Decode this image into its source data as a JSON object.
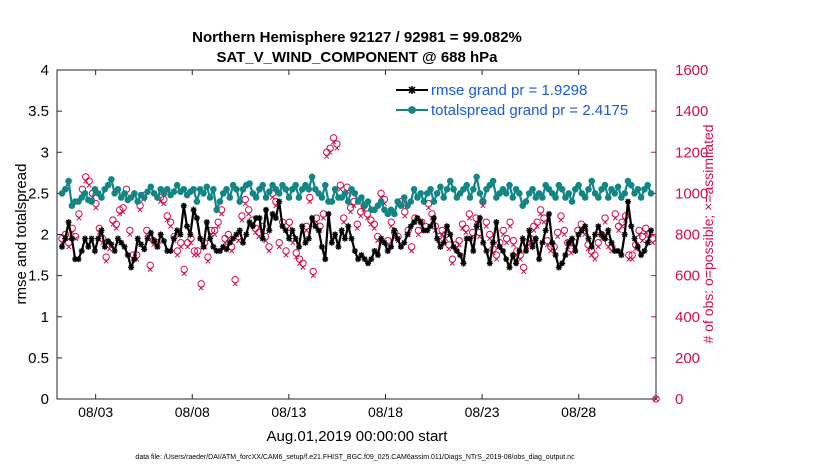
{
  "chart_data": {
    "type": "line",
    "title": "Northern Hemisphere 92127 / 92981 = 99.082%",
    "subtitle": "SAT_V_WIND_COMPONENT @ 688 hPa",
    "xlabel": "Aug.01,2019 00:00:00 start",
    "ylabel_left": "rmse and totalspread",
    "ylabel_right": "# of obs: o=possible; ×=assimilated",
    "ylim_left": [
      0,
      4
    ],
    "ylim_right": [
      0,
      1600
    ],
    "yticks_left": [
      "0",
      "0.5",
      "1",
      "1.5",
      "2",
      "2.5",
      "3",
      "3.5",
      "4"
    ],
    "yticks_right": [
      "0",
      "200",
      "400",
      "600",
      "800",
      "1000",
      "1200",
      "1400",
      "1600"
    ],
    "x_tick_labels": [
      "08/03",
      "08/08",
      "08/13",
      "08/18",
      "08/23",
      "08/28"
    ],
    "x_tick_days": [
      3,
      8,
      13,
      18,
      23,
      28
    ],
    "x_range_days": [
      1,
      32
    ],
    "footnote": "data file: /Users/raeder/DAI/ATM_forcXX/CAM6_setup/f.e21.FHIST_BGC.f09_025.CAM6assim.011/Diags_NTrS_2019-08/obs_diag_output.nc",
    "colors": {
      "rmse": "#000000",
      "spread": "#138585",
      "obs": "#d0104c",
      "legend_text": "#1a5ad8"
    },
    "series": [
      {
        "name": "rmse",
        "legend": "rmse grand pr = 1.9298",
        "values": [
          1.85,
          1.95,
          2.15,
          1.95,
          1.7,
          1.7,
          1.8,
          1.95,
          1.85,
          1.95,
          1.8,
          1.95,
          2.05,
          1.85,
          1.92,
          1.88,
          1.8,
          1.95,
          1.9,
          1.85,
          1.75,
          1.6,
          1.7,
          1.95,
          1.88,
          1.82,
          1.95,
          2.02,
          1.92,
          1.85,
          2.0,
          1.92,
          1.8,
          1.8,
          1.95,
          2.05,
          2.0,
          2.35,
          2.1,
          2.0,
          2.3,
          2.2,
          1.95,
          1.85,
          2.15,
          1.95,
          1.85,
          1.8,
          1.8,
          1.85,
          1.82,
          1.9,
          1.95,
          2.0,
          2.05,
          1.9,
          2.0,
          2.15,
          2.1,
          2.2,
          2.2,
          1.95,
          2.3,
          2.05,
          2.25,
          2.2,
          2.4,
          2.1,
          2.05,
          1.95,
          2.05,
          1.95,
          1.85,
          2.1,
          1.9,
          1.95,
          2.2,
          2.1,
          2.05,
          1.85,
          1.7,
          2.25,
          1.9,
          2.0,
          1.85,
          2.05,
          1.95,
          2.1,
          1.95,
          1.8,
          1.7,
          1.75,
          1.7,
          1.65,
          1.7,
          1.8,
          1.75,
          1.95,
          1.9,
          1.8,
          1.85,
          2.05,
          1.95,
          1.85,
          1.9,
          2.0,
          2.1,
          2.15,
          2.2,
          2.15,
          2.05,
          2.05,
          2.1,
          2.2,
          1.95,
          1.85,
          1.9,
          2.1,
          2.0,
          1.85,
          1.8,
          1.75,
          1.65,
          1.95,
          1.95,
          1.8,
          2.1,
          2.2,
          1.9,
          1.8,
          1.65,
          1.9,
          2.15,
          1.85,
          1.8,
          1.7,
          1.6,
          1.75,
          1.65,
          1.8,
          1.95,
          1.8,
          2.05,
          1.85,
          1.95,
          1.7,
          1.9,
          2.05,
          2.25,
          1.9,
          1.75,
          1.6,
          1.65,
          1.75,
          1.9,
          1.95,
          1.8,
          2.0,
          2.05,
          2.1,
          1.95,
          1.85,
          2.0,
          2.1,
          2.0,
          1.95,
          2.05,
          1.9,
          1.8,
          1.8,
          1.75,
          2.0,
          2.4,
          2.1,
          1.95,
          1.85,
          1.75,
          1.8,
          1.9,
          2.05
        ]
      },
      {
        "name": "totalspread",
        "legend": "totalspread grand pr = 2.4175",
        "values": [
          2.5,
          2.55,
          2.65,
          2.35,
          2.4,
          2.4,
          2.45,
          2.5,
          2.42,
          2.4,
          2.55,
          2.5,
          2.45,
          2.55,
          2.6,
          2.67,
          2.5,
          2.55,
          2.45,
          2.5,
          2.42,
          2.45,
          2.5,
          2.4,
          2.48,
          2.45,
          2.52,
          2.58,
          2.5,
          2.45,
          2.55,
          2.5,
          2.55,
          2.48,
          2.52,
          2.6,
          2.52,
          2.55,
          2.48,
          2.52,
          2.55,
          2.4,
          2.55,
          2.5,
          2.58,
          2.45,
          2.55,
          2.3,
          2.4,
          2.5,
          2.55,
          2.45,
          2.6,
          2.55,
          2.4,
          2.55,
          2.6,
          2.62,
          2.5,
          2.45,
          2.55,
          2.6,
          2.45,
          2.52,
          2.6,
          2.55,
          2.5,
          2.6,
          2.55,
          2.45,
          2.55,
          2.6,
          2.45,
          2.55,
          2.6,
          2.55,
          2.7,
          2.55,
          2.5,
          2.45,
          2.6,
          2.4,
          2.4,
          2.55,
          2.45,
          2.45,
          2.5,
          2.4,
          2.55,
          2.5,
          2.4,
          2.45,
          2.35,
          2.4,
          2.3,
          2.3,
          2.35,
          2.4,
          2.3,
          2.25,
          2.3,
          2.25,
          2.4,
          2.35,
          2.45,
          2.35,
          2.4,
          2.55,
          2.45,
          2.5,
          2.4,
          2.5,
          2.55,
          2.4,
          2.5,
          2.58,
          2.45,
          2.55,
          2.65,
          2.55,
          2.45,
          2.5,
          2.55,
          2.6,
          2.45,
          2.55,
          2.7,
          2.5,
          2.4,
          2.55,
          2.6,
          2.65,
          2.45,
          2.5,
          2.55,
          2.5,
          2.6,
          2.45,
          2.55,
          2.5,
          2.35,
          2.4,
          2.5,
          2.55,
          2.45,
          2.5,
          2.45,
          2.6,
          2.55,
          2.5,
          2.45,
          2.6,
          2.55,
          2.45,
          2.5,
          2.4,
          2.55,
          2.6,
          2.5,
          2.45,
          2.55,
          2.65,
          2.5,
          2.45,
          2.55,
          2.6,
          2.45,
          2.55,
          2.5,
          2.58,
          2.45,
          2.5,
          2.65,
          2.6,
          2.5,
          2.55,
          2.45,
          2.55,
          2.6,
          2.5
        ]
      }
    ],
    "obs_counts": {
      "name": "# of obs",
      "possible": [
        780,
        800,
        760,
        830,
        790,
        900,
        1020,
        1080,
        1060,
        1000,
        950,
        830,
        780,
        690,
        750,
        870,
        850,
        920,
        930,
        1020,
        820,
        700,
        700,
        940,
        990,
        820,
        650,
        770,
        760,
        980,
        970,
        890,
        860,
        790,
        720,
        760,
        630,
        760,
        780,
        720,
        720,
        560,
        760,
        690,
        820,
        820,
        860,
        920,
        780,
        800,
        740,
        580,
        790,
        890,
        970,
        920,
        870,
        830,
        810,
        840,
        790,
        740,
        1000,
        960,
        760,
        860,
        720,
        860,
        780,
        710,
        680,
        660,
        840,
        980,
        620,
        880,
        840,
        900,
        1200,
        1220,
        1270,
        1240,
        1040,
        880,
        1030,
        930,
        960,
        850,
        910,
        940,
        900,
        870,
        850,
        790,
        1000,
        970,
        770,
        860,
        810,
        790,
        960,
        910,
        820,
        740,
        880,
        820,
        860,
        840,
        950,
        900,
        840,
        790,
        820,
        800,
        750,
        680,
        750,
        770,
        850,
        830,
        900,
        810,
        880,
        810,
        960,
        860,
        800,
        730,
        700,
        760,
        820,
        780,
        860,
        770,
        720,
        700,
        640,
        760,
        780,
        840,
        860,
        920,
        880,
        770,
        740,
        740,
        810,
        890,
        820,
        760,
        730,
        760,
        820,
        850,
        820,
        750,
        720,
        700,
        760,
        800,
        880,
        760,
        740,
        900,
        840,
        860,
        890,
        700,
        700,
        750,
        820,
        790,
        830,
        800,
        780,
        0
      ],
      "assimilated": [
        760,
        790,
        740,
        810,
        780,
        880,
        1000,
        1060,
        1040,
        980,
        930,
        810,
        760,
        670,
        730,
        850,
        830,
        900,
        910,
        1000,
        800,
        680,
        680,
        920,
        970,
        800,
        630,
        750,
        740,
        960,
        950,
        870,
        840,
        770,
        700,
        740,
        610,
        740,
        760,
        700,
        700,
        540,
        740,
        670,
        800,
        800,
        840,
        900,
        760,
        780,
        720,
        560,
        770,
        870,
        950,
        900,
        850,
        810,
        790,
        820,
        770,
        720,
        980,
        940,
        740,
        840,
        700,
        840,
        760,
        690,
        660,
        640,
        820,
        960,
        600,
        860,
        820,
        880,
        1180,
        1200,
        1250,
        1220,
        1020,
        860,
        1010,
        910,
        940,
        830,
        890,
        920,
        880,
        850,
        830,
        770,
        980,
        950,
        750,
        840,
        790,
        770,
        940,
        890,
        800,
        720,
        860,
        800,
        840,
        820,
        930,
        880,
        820,
        770,
        800,
        780,
        730,
        660,
        730,
        750,
        830,
        810,
        880,
        790,
        860,
        790,
        940,
        840,
        780,
        710,
        680,
        740,
        800,
        760,
        840,
        750,
        700,
        680,
        620,
        740,
        760,
        820,
        840,
        900,
        860,
        750,
        720,
        720,
        790,
        870,
        800,
        740,
        710,
        740,
        800,
        830,
        800,
        730,
        700,
        680,
        740,
        780,
        860,
        740,
        720,
        880,
        820,
        840,
        870,
        680,
        680,
        730,
        800,
        770,
        810,
        780,
        760,
        0
      ]
    }
  }
}
